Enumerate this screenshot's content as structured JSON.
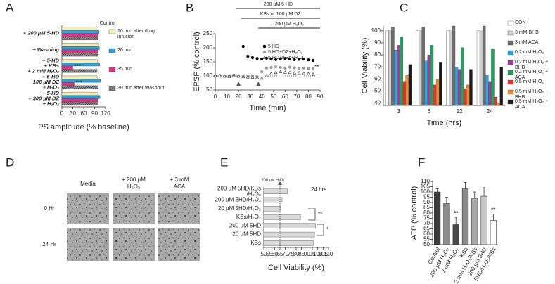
{
  "chart_data": [
    {
      "panel": "A",
      "type": "hbar",
      "xlabel": "PS amplitude (% baseline)",
      "categories": [
        [
          "+ 200 µM 5-HD"
        ],
        [
          "+ Washing"
        ],
        [
          "+ 5-HD",
          "+ KBs",
          "+ 2 mM H₂O₂"
        ],
        [
          "+ 5-HD",
          "+ 100 µM DZ",
          "+ H₂O₂"
        ],
        [
          "+ 5-HD",
          "+ 300 µM DZ",
          "+ H₂O₂"
        ]
      ],
      "series": [
        {
          "name": "10 min after drug infusion",
          "color": "#f3efb5",
          "values": [
            100,
            101,
            98,
            97,
            99
          ]
        },
        {
          "name": "20 min",
          "color": "#2b9fd8",
          "values": [
            102,
            103,
            104,
            106,
            105
          ]
        },
        {
          "name": "35 min",
          "color": "#e0307f",
          "values": [
            100,
            100,
            30,
            34,
            100
          ]
        },
        {
          "name": "30 min after Washout",
          "color": "#8a8a8a",
          "hatch": true,
          "values": [
            99,
            99,
            97,
            98,
            99
          ]
        }
      ],
      "xlim": [
        0,
        120
      ],
      "xticks": [
        0,
        30,
        60,
        90,
        120
      ],
      "reference": {
        "value": 100,
        "label": "Control"
      },
      "annotations": [
        "***",
        "***"
      ]
    },
    {
      "panel": "B",
      "type": "line",
      "xlabel": "Time (min)",
      "ylabel": "EPSP (% control)",
      "treatments": [
        {
          "label": "200 µM 5 HD",
          "start": 18,
          "end": 90
        },
        {
          "label": "KBs or 100 µM DZ",
          "start": 22,
          "end": 90
        },
        {
          "label": "200 µM H₂O₂",
          "start": 37,
          "end": 90
        }
      ],
      "x": [
        0,
        4,
        8,
        12,
        16,
        20,
        24,
        28,
        32,
        36,
        40,
        44,
        48,
        52,
        56,
        60,
        64,
        68,
        72,
        76,
        80,
        84
      ],
      "series": [
        {
          "name": "5 HD",
          "color": "#000000",
          "marker": "circle",
          "filled": true,
          "values": [
            100,
            101,
            99,
            100,
            102,
            100,
            205,
            170,
            165,
            162,
            160,
            163,
            160,
            158,
            160,
            162,
            160,
            158,
            159,
            160,
            157,
            155
          ]
        },
        {
          "name": "5 HD+DZ+H₂O₂",
          "color": "#999999",
          "marker": "circle",
          "filled": true,
          "values": [
            98,
            99,
            100,
            101,
            99,
            100,
            101,
            99,
            100,
            98,
            115,
            128,
            130,
            132,
            130,
            128,
            131,
            129,
            127,
            128,
            126,
            125
          ]
        },
        {
          "name": "5 HD+KBs+H₂O₂",
          "color": "#333333",
          "marker": "triangle",
          "filled": false,
          "values": [
            101,
            100,
            99,
            98,
            100,
            99,
            97,
            96,
            95,
            94,
            92,
            100,
            108,
            112,
            115,
            113,
            112,
            110,
            111,
            109,
            108,
            106
          ]
        }
      ],
      "xlim": [
        0,
        90
      ],
      "xticks": [
        0,
        10,
        20,
        30,
        40,
        50,
        60,
        70,
        80,
        90
      ],
      "ylim": [
        50,
        250
      ],
      "yticks": [
        50,
        100,
        150,
        200,
        250
      ],
      "reference": 100,
      "arrows": [
        20,
        37
      ],
      "annotations": [
        "**"
      ]
    },
    {
      "panel": "C",
      "type": "bar",
      "xlabel": "Time (hrs)",
      "ylabel": "Cell Viability (%)",
      "categories": [
        "3",
        "6",
        "12",
        "24"
      ],
      "series": [
        {
          "name": "CON",
          "color": "#ffffff",
          "values": [
            100,
            100,
            100,
            100
          ]
        },
        {
          "name": "3 mM BHB",
          "color": "#cfcfcf",
          "values": [
            101,
            101,
            101,
            101
          ]
        },
        {
          "name": "3 mM ACA",
          "color": "#6e6e6e",
          "values": [
            103,
            103,
            104,
            104
          ]
        },
        {
          "name": "0.2 mM H₂O₂",
          "color": "#27a9e1",
          "values": [
            84,
            75,
            70,
            63
          ]
        },
        {
          "name": "0.2 mM H₂O₂ + BHB",
          "color": "#9b3f98",
          "values": [
            88,
            80,
            68,
            58
          ]
        },
        {
          "name": "0.2 mM H₂O₂ + ACA",
          "color": "#19a55a",
          "values": [
            95,
            88,
            86,
            85
          ]
        },
        {
          "name": "0.5 mM H₂O₂",
          "color": "#e8322b",
          "values": [
            58,
            55,
            52,
            45
          ]
        },
        {
          "name": "0.5 mM H₂O₂ + BHB",
          "color": "#f08a2c",
          "values": [
            63,
            60,
            55,
            40
          ]
        },
        {
          "name": "0.5 mM H₂O₂ + ACA",
          "color": "#1a1a1a",
          "values": [
            72,
            74,
            68,
            70
          ]
        }
      ],
      "ylim": [
        38,
        104
      ],
      "yticks": [
        40,
        50,
        60,
        70,
        80,
        90,
        100
      ]
    },
    {
      "panel": "E",
      "type": "hbar",
      "xlabel": "Cell Viability (%)",
      "categories": [
        [
          "200 µM 5HD/KBs",
          "/H₂O₂"
        ],
        [
          "200 µM 5HD/H₂O₂"
        ],
        [
          "20 µM 5HD/H₂O₂"
        ],
        [
          "KBs/H₂O₂"
        ],
        [
          "200 µM 5HD"
        ],
        [
          "20 µM 5HD"
        ],
        [
          "KBs"
        ]
      ],
      "values": [
        72,
        67,
        66,
        84,
        98,
        97,
        96
      ],
      "color": "#d9d9d9",
      "xlim": [
        50,
        110
      ],
      "xticks": [
        50,
        55,
        60,
        65,
        70,
        75,
        80,
        85,
        90,
        95,
        100,
        105,
        110
      ],
      "reference": {
        "value": 65,
        "label": "200 µM H₂O₂"
      },
      "note": "24 hrs",
      "annotations": [
        "**",
        "*"
      ]
    },
    {
      "panel": "F",
      "type": "bar",
      "ylabel": "ATP (% control)",
      "categories": [
        "Control",
        "200 µM H₂O₂",
        "2 mM H₂O₂",
        "KBs",
        "2 mM H₂O₂/KBs",
        "200 µM 5HD",
        "5HD/H₂O₂/KBs"
      ],
      "values": [
        100,
        89,
        69,
        103,
        94,
        96,
        73
      ],
      "errors": [
        3,
        6,
        7,
        6,
        6,
        8,
        6
      ],
      "colors": [
        "#3a3a3a",
        "#8c8c8c",
        "#4a4a4a",
        "#8c8c8c",
        "#a9a9a9",
        "#c8c8c8",
        "#ffffff"
      ],
      "ylim": [
        50,
        110
      ],
      "yticks": [
        50,
        55,
        60,
        65,
        70,
        75,
        80,
        85,
        90,
        95,
        100,
        105,
        110
      ],
      "annotations": [
        "**",
        "**"
      ]
    }
  ],
  "image_panel": {
    "panel": "D",
    "columns": [
      [
        "Media"
      ],
      [
        "+ 200 µM",
        "H₂O₂"
      ],
      [
        "+ 3 mM",
        "ACA"
      ]
    ],
    "rows": [
      "0 Hr",
      "24 Hr"
    ]
  }
}
